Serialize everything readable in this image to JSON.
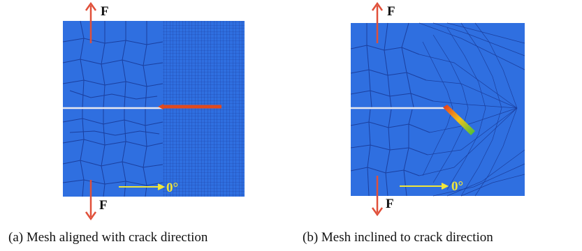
{
  "panels": [
    {
      "force_top_label": "F",
      "force_bottom_label": "F",
      "angle_label": "0°",
      "caption": "(a) Mesh aligned with crack direction"
    },
    {
      "force_top_label": "F",
      "force_bottom_label": "F",
      "angle_label": "0°",
      "caption": "(b) Mesh inclined to crack direction"
    }
  ],
  "colors": {
    "mesh_fill": "#2f6fe0",
    "mesh_line": "#1b3f9e",
    "force_arrow": "#e0503a",
    "crack_line": "#e8e8f0",
    "crack_growth": "#e04a1e",
    "angle_arrow": "#f0e63a"
  }
}
